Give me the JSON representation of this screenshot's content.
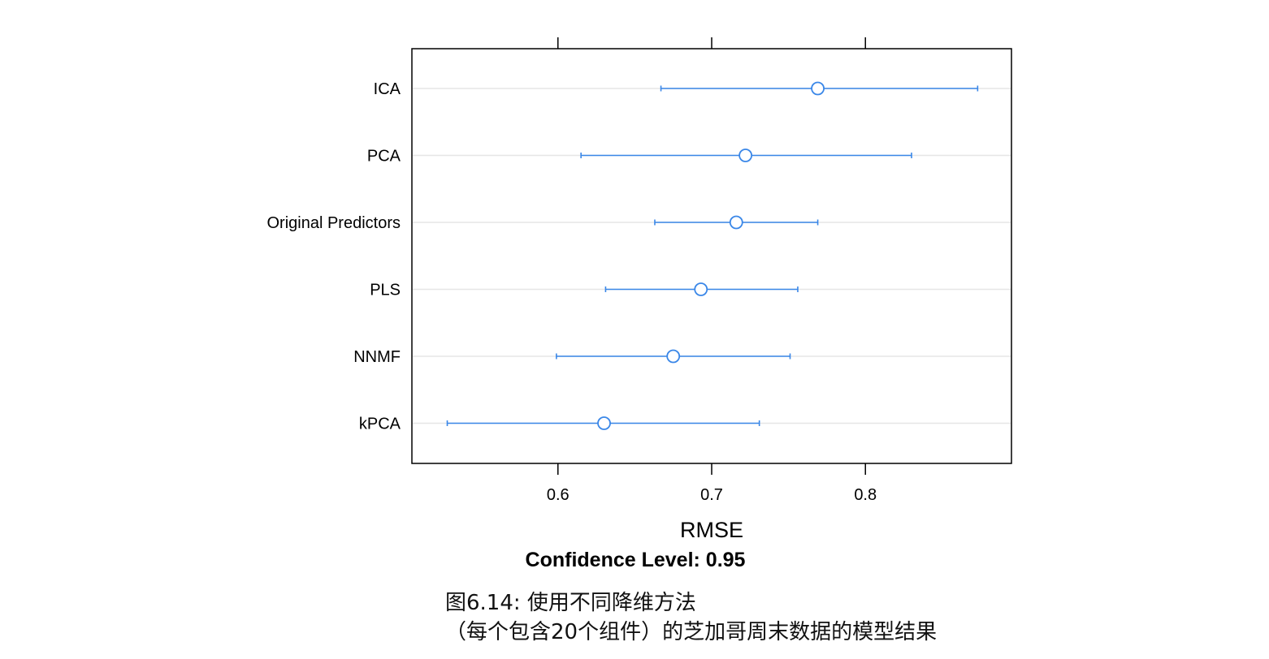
{
  "chart_data": {
    "type": "dotplot-interval",
    "xlabel": "RMSE",
    "subtitle": "Confidence Level: 0.95",
    "xlim": [
      0.505,
      0.895
    ],
    "x_ticks": [
      0.6,
      0.7,
      0.8
    ],
    "x_tick_labels": [
      "0.6",
      "0.7",
      "0.8"
    ],
    "grid": "horizontal",
    "categories": [
      "ICA",
      "PCA",
      "Original Predictors",
      "PLS",
      "NNMF",
      "kPCA"
    ],
    "series": [
      {
        "estimate": [
          0.769,
          0.722,
          0.716,
          0.693,
          0.675,
          0.63
        ],
        "lower": [
          0.667,
          0.615,
          0.663,
          0.631,
          0.599,
          0.528
        ],
        "upper": [
          0.873,
          0.83,
          0.769,
          0.756,
          0.751,
          0.731
        ]
      }
    ]
  },
  "colors": {
    "series": "#3a87e8",
    "grid": "#e6e6e6",
    "axis": "#000000"
  },
  "caption": {
    "line1": "图6.14: 使用不同降维方法",
    "line2": "（每个包含20个组件）的芝加哥周末数据的模型结果"
  }
}
